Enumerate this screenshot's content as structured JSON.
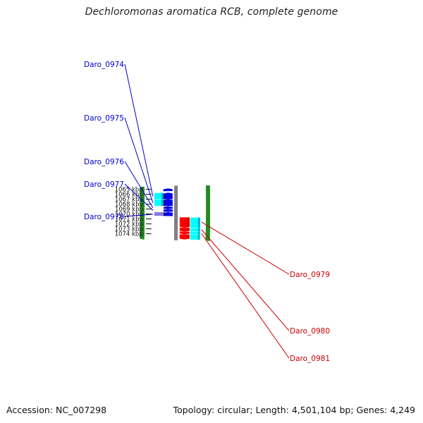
{
  "title": "Dechloromonas aromatica RCB, complete genome",
  "footer": {
    "accession": "Accession: NC_007298",
    "summary": "Topology: circular; Length: 4,501,104 bp; Genes: 4,249"
  },
  "colors": {
    "forward_cds": "#0000ee",
    "reverse_cds": "#ff0000",
    "gene_bar": "#00ffff",
    "misc_feature": "#7b68d8",
    "backbone": "#808080",
    "gc_ticks": "#228b22",
    "forward_label": "#0000cc",
    "reverse_label": "#cc0000"
  },
  "ruler": {
    "unit": "kbp",
    "ticks": [
      {
        "kbp": 1065,
        "label": "1065 kbp"
      },
      {
        "kbp": 1066,
        "label": "1066 kbp"
      },
      {
        "kbp": 1067,
        "label": "1067 kbp"
      },
      {
        "kbp": 1068,
        "label": "1068 kbp"
      },
      {
        "kbp": 1069,
        "label": "1069 kbp"
      },
      {
        "kbp": 1070,
        "label": "1070 kbp"
      },
      {
        "kbp": 1071,
        "label": "1071 kbp"
      },
      {
        "kbp": 1072,
        "label": "1072 kbp"
      },
      {
        "kbp": 1073,
        "label": "1073 kbp"
      },
      {
        "kbp": 1074,
        "label": "1074 kbp"
      }
    ]
  },
  "features": [
    {
      "name": "Daro_0974",
      "strand": "+",
      "start_kbp": 1065.75,
      "end_kbp": 1067.05,
      "labeled": true
    },
    {
      "name": "Daro_0975",
      "strand": "+",
      "start_kbp": 1067.05,
      "end_kbp": 1068.4,
      "labeled": true
    },
    {
      "name": "Daro_0976",
      "strand": "+",
      "start_kbp": 1068.45,
      "end_kbp": 1068.95,
      "labeled": true
    },
    {
      "name": "Daro_0977",
      "strand": "+",
      "start_kbp": 1068.95,
      "end_kbp": 1069.55,
      "labeled": true
    },
    {
      "name": "Daro_0978",
      "strand": "+",
      "start_kbp": 1069.6,
      "end_kbp": 1070.4,
      "labeled": true
    },
    {
      "name": "Daro_0979",
      "strand": "-",
      "start_kbp": 1070.65,
      "end_kbp": 1072.7,
      "labeled": true
    },
    {
      "name": "Daro_0980",
      "strand": "-",
      "start_kbp": 1072.7,
      "end_kbp": 1073.45,
      "labeled": true
    },
    {
      "name": "Daro_0981",
      "strand": "-",
      "start_kbp": 1073.45,
      "end_kbp": 1074.0,
      "labeled": true
    },
    {
      "name": "",
      "strand": "+",
      "start_kbp": 1064.9,
      "end_kbp": 1065.45,
      "labeled": false
    },
    {
      "name": "",
      "strand": "-",
      "start_kbp": 1074.0,
      "end_kbp": 1075.0,
      "labeled": false
    }
  ]
}
